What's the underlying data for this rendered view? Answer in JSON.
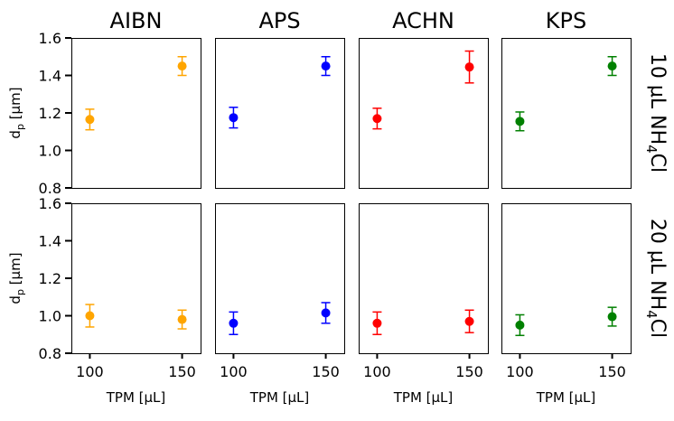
{
  "chart_data": {
    "type": "scatter",
    "xlabel": "TPM [μL]",
    "ylabel": {
      "main": "d",
      "sub": "p",
      "unit": " [μm]"
    },
    "xlim": [
      90,
      160
    ],
    "ylim": [
      0.8,
      1.6
    ],
    "x_ticks": [
      100,
      150
    ],
    "y_ticks": [
      0.8,
      1.0,
      1.2,
      1.4,
      1.6
    ],
    "columns": [
      {
        "name": "AIBN",
        "color": "#FFA500"
      },
      {
        "name": "APS",
        "color": "#0000FF"
      },
      {
        "name": "ACHN",
        "color": "#FF0000"
      },
      {
        "name": "KPS",
        "color": "#008000"
      }
    ],
    "rows": [
      {
        "pre": "10 μL NH",
        "sub": "4",
        "post": "Cl"
      },
      {
        "pre": "20 μL NH",
        "sub": "4",
        "post": "Cl"
      }
    ],
    "panels": [
      {
        "row": 0,
        "col": 0,
        "points": [
          {
            "x": 100,
            "y": 1.165,
            "err": 0.055
          },
          {
            "x": 150,
            "y": 1.45,
            "err": 0.05
          }
        ]
      },
      {
        "row": 0,
        "col": 1,
        "points": [
          {
            "x": 100,
            "y": 1.175,
            "err": 0.055
          },
          {
            "x": 150,
            "y": 1.45,
            "err": 0.05
          }
        ]
      },
      {
        "row": 0,
        "col": 2,
        "points": [
          {
            "x": 100,
            "y": 1.17,
            "err": 0.055
          },
          {
            "x": 150,
            "y": 1.445,
            "err": 0.085
          }
        ]
      },
      {
        "row": 0,
        "col": 3,
        "points": [
          {
            "x": 100,
            "y": 1.155,
            "err": 0.05
          },
          {
            "x": 150,
            "y": 1.45,
            "err": 0.05
          }
        ]
      },
      {
        "row": 1,
        "col": 0,
        "points": [
          {
            "x": 100,
            "y": 1.0,
            "err": 0.06
          },
          {
            "x": 150,
            "y": 0.98,
            "err": 0.05
          }
        ]
      },
      {
        "row": 1,
        "col": 1,
        "points": [
          {
            "x": 100,
            "y": 0.96,
            "err": 0.06
          },
          {
            "x": 150,
            "y": 1.015,
            "err": 0.055
          }
        ]
      },
      {
        "row": 1,
        "col": 2,
        "points": [
          {
            "x": 100,
            "y": 0.96,
            "err": 0.06
          },
          {
            "x": 150,
            "y": 0.97,
            "err": 0.06
          }
        ]
      },
      {
        "row": 1,
        "col": 3,
        "points": [
          {
            "x": 100,
            "y": 0.95,
            "err": 0.055
          },
          {
            "x": 150,
            "y": 0.995,
            "err": 0.05
          }
        ]
      }
    ]
  }
}
